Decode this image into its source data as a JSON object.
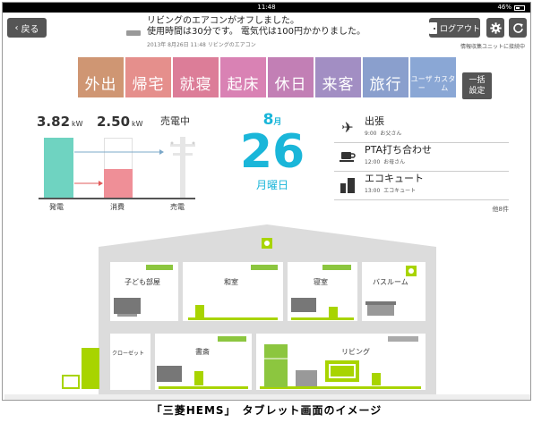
{
  "status_bar": {
    "time": "11:48",
    "battery": "46%"
  },
  "header": {
    "back_label": "戻る",
    "notice_line1": "リビングのエアコンがオフしました。",
    "notice_line2": "使用時間は30分です。 電気代は100円かかりました。",
    "notice_meta": "2013年 8月26日 11:48  リビングのエアコン",
    "logout_label": "ログアウト",
    "collect_status": "情報収集ユニットに接続中",
    "icons": {
      "back": "chevron-left-icon",
      "logout": "door-icon",
      "settings": "gear-icon",
      "refresh": "refresh-icon"
    }
  },
  "modes": [
    {
      "label": "外出",
      "color": "#cf9673"
    },
    {
      "label": "帰宅",
      "color": "#e58f8c"
    },
    {
      "label": "就寝",
      "color": "#dc7d98"
    },
    {
      "label": "起床",
      "color": "#d982b4"
    },
    {
      "label": "休日",
      "color": "#c27fb5"
    },
    {
      "label": "来客",
      "color": "#a28ec3"
    },
    {
      "label": "旅行",
      "color": "#8a9fcd"
    },
    {
      "label": "ユーザーカスタム",
      "line1": "ユーザー",
      "line2": "カスタム",
      "color": "#8aa7d5"
    }
  ],
  "bulk_setting": {
    "line1": "一括",
    "line2": "設定"
  },
  "energy": {
    "generation_value": "3.82",
    "consumption_value": "2.50",
    "unit": "kW",
    "state": "売電中",
    "labels": {
      "generation": "発電",
      "consumption": "消費",
      "sell": "売電"
    },
    "consumption_ratio": 0.48,
    "colors": {
      "generation": "#6fd3c1",
      "consumption": "#ef8f97",
      "sell_arrow": "#7ba8c9",
      "use_arrow": "#e25b5b"
    }
  },
  "date": {
    "month": "8",
    "month_suffix": "月",
    "day": "26",
    "weekday": "月曜日",
    "color": "#1ab6d9"
  },
  "schedule": {
    "items": [
      {
        "title": "出張",
        "time": "9:00",
        "person": "お父さん",
        "icon": "airplane-icon"
      },
      {
        "title": "PTA打ち合わせ",
        "time": "12:00",
        "person": "お母さん",
        "icon": "coffee-cup-icon"
      },
      {
        "title": "エコキュート",
        "time": "13:00",
        "person": "エコキュート",
        "icon": "water-heater-icon"
      }
    ],
    "more_label": "他8件"
  },
  "house": {
    "rooms": [
      {
        "name": "子ども部屋"
      },
      {
        "name": "和室"
      },
      {
        "name": "寝室"
      },
      {
        "name": "バスルーム"
      },
      {
        "name": "クローゼット"
      },
      {
        "name": "書斎"
      },
      {
        "name": "リビング"
      }
    ],
    "colors": {
      "wall": "#dcdcdc",
      "active": "#a8d400",
      "aircon_on": "#8cc63f",
      "aircon_off": "#aaaaaa"
    }
  },
  "caption": "「三菱HEMS」　タブレット画面のイメージ"
}
